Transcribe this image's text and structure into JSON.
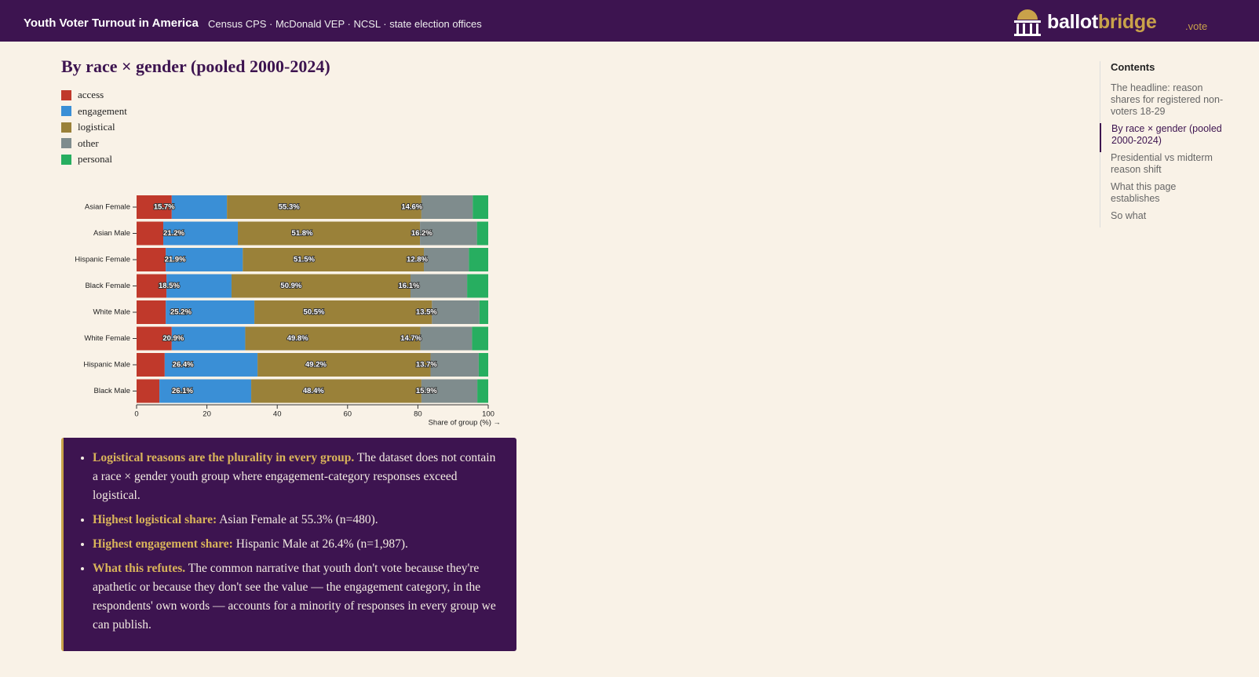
{
  "header": {
    "title": "Youth Voter Turnout in America",
    "subtitle": "Census CPS · McDonald VEP · NCSL · state election offices",
    "brand_primary": "ballot",
    "brand_accent": "bridge",
    "brand_suffix": ".vote"
  },
  "section": {
    "heading": "By race × gender (pooled 2000-2024)"
  },
  "chart_data": {
    "type": "stacked-bar-horizontal",
    "categories": [
      "Asian Female",
      "Asian Male",
      "Hispanic Female",
      "Black Female",
      "White Male",
      "White Female",
      "Hispanic Male",
      "Black Male"
    ],
    "series": [
      {
        "name": "access",
        "color": "#c0392b",
        "values": [
          10.0,
          7.6,
          8.3,
          8.5,
          8.3,
          10.0,
          8.0,
          6.5
        ]
      },
      {
        "name": "engagement",
        "color": "#3a8fd6",
        "values": [
          15.7,
          21.2,
          21.9,
          18.5,
          25.2,
          20.9,
          26.4,
          26.1
        ],
        "value_labels": [
          "15.7%",
          "21.2%",
          "21.9%",
          "18.5%",
          "25.2%",
          "20.9%",
          "26.4%",
          "26.1%"
        ]
      },
      {
        "name": "logistical",
        "color": "#9a8139",
        "values": [
          55.3,
          51.8,
          51.5,
          50.9,
          50.5,
          49.8,
          49.2,
          48.4
        ],
        "value_labels": [
          "55.3%",
          "51.8%",
          "51.5%",
          "50.9%",
          "50.5%",
          "49.8%",
          "49.2%",
          "48.4%"
        ]
      },
      {
        "name": "other",
        "color": "#7f8c8d",
        "values": [
          14.6,
          16.2,
          12.8,
          16.1,
          13.5,
          14.7,
          13.7,
          15.9
        ],
        "value_labels": [
          "14.6%",
          "16.2%",
          "12.8%",
          "16.1%",
          "13.5%",
          "14.7%",
          "13.7%",
          "15.9%"
        ]
      },
      {
        "name": "personal",
        "color": "#27ae60",
        "values": [
          4.4,
          3.2,
          5.5,
          6.0,
          2.5,
          4.6,
          2.7,
          3.1
        ]
      }
    ],
    "xlim": [
      0,
      100
    ],
    "xticks": [
      0,
      20,
      40,
      60,
      80,
      100
    ],
    "xlabel": "Share of group (%) →"
  },
  "callout": {
    "items": [
      {
        "lead": "Logistical reasons are the plurality in every group.",
        "text": "The dataset does not contain a race × gender youth group where engagement-category responses exceed logistical."
      },
      {
        "lead": "Highest logistical share:",
        "text": "Asian Female at 55.3% (n=480)."
      },
      {
        "lead": "Highest engagement share:",
        "text": "Hispanic Male at 26.4% (n=1,987)."
      },
      {
        "lead": "What this refutes.",
        "text": "The common narrative that youth don't vote because they're apathetic or because they don't see the value — the engagement category, in the respondents' own words — accounts for a minority of responses in every group we can publish."
      }
    ]
  },
  "toc": {
    "title": "Contents",
    "items": [
      "The headline: reason shares for registered non-voters 18-29",
      "By race × gender (pooled 2000-2024)",
      "Presidential vs midterm reason shift",
      "What this page establishes",
      "So what"
    ]
  }
}
